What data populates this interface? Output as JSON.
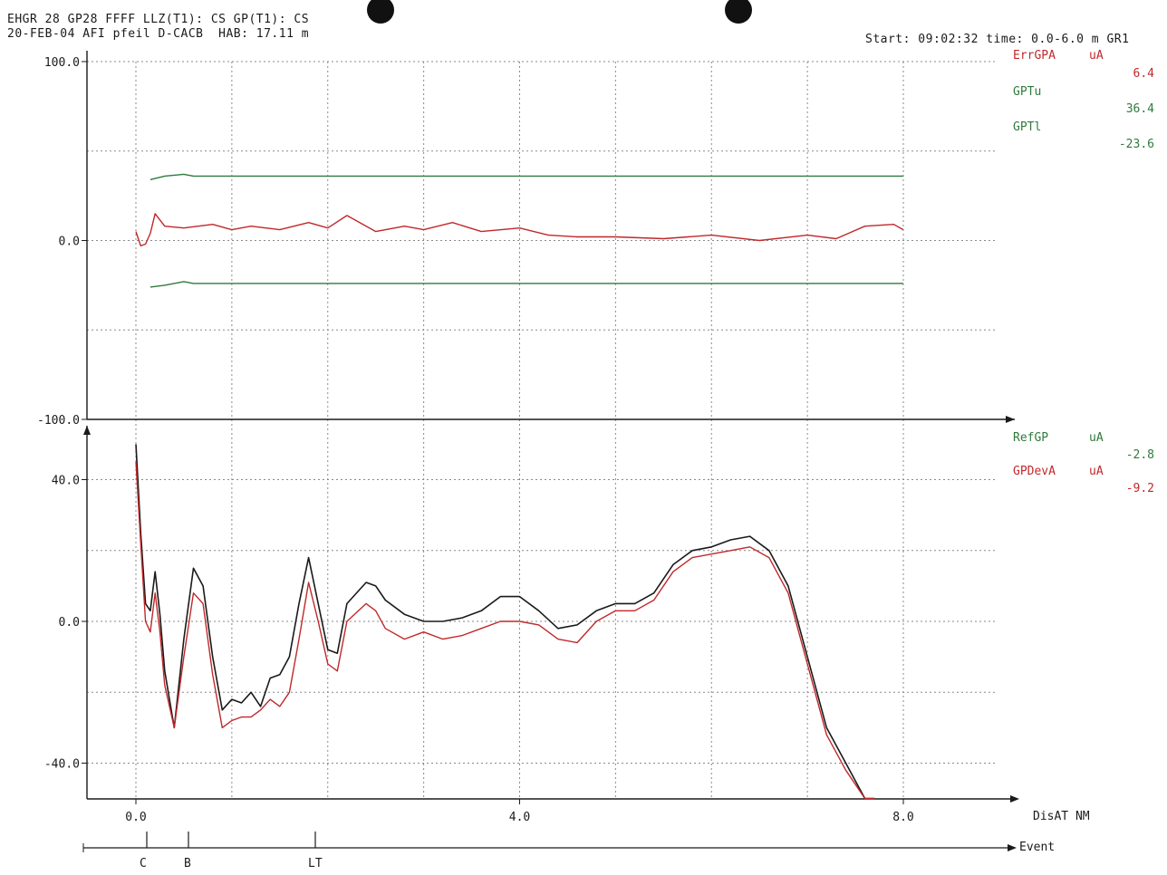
{
  "header": {
    "line1": "EHGR 28 GP28 FFFF LLZ(T1): CS GP(T1): CS",
    "line2": "20-FEB-04 AFI pfeil D-CACB  HAB: 17.11 m",
    "start": "Start: 09:02:32 time: 0.0-6.0 m GR1"
  },
  "colors": {
    "red": "#c0282a",
    "green": "#2f7a3c",
    "black": "#1a1a1a",
    "grid": "#8a8a8a"
  },
  "top_legend": {
    "items": [
      {
        "name": "ErrGPA",
        "unit": "uA",
        "value": "6.4",
        "color": "#c0282a"
      },
      {
        "name": "GPTu",
        "unit": "",
        "value": "36.4",
        "color": "#2f7a3c"
      },
      {
        "name": "GPTl",
        "unit": "",
        "value": "-23.6",
        "color": "#2f7a3c"
      }
    ]
  },
  "bottom_legend": {
    "items": [
      {
        "name": "RefGP",
        "unit": "uA",
        "value": "-2.8",
        "color": "#2f7a3c"
      },
      {
        "name": "GPDevA",
        "unit": "uA",
        "value": "-9.2",
        "color": "#c0282a"
      }
    ]
  },
  "axis_labels": {
    "x_unit": "DisAT NM",
    "event_label": "Event",
    "events": [
      "C",
      "B",
      "LT"
    ]
  },
  "chart_data": [
    {
      "type": "line",
      "title": "",
      "ylim": [
        -100,
        100
      ],
      "yticks": [
        "100.0",
        "0.0",
        "-100.0"
      ],
      "xlim": [
        -0.5,
        9.0
      ],
      "series": [
        {
          "name": "ErrGPA",
          "x": [
            0.0,
            0.05,
            0.1,
            0.15,
            0.2,
            0.3,
            0.5,
            0.8,
            1.0,
            1.2,
            1.5,
            1.8,
            2.0,
            2.2,
            2.5,
            2.8,
            3.0,
            3.3,
            3.6,
            4.0,
            4.3,
            4.6,
            5.0,
            5.5,
            6.0,
            6.5,
            7.0,
            7.3,
            7.6,
            7.9,
            8.0
          ],
          "y": [
            5,
            -3,
            -2,
            4,
            15,
            8,
            7,
            9,
            6,
            8,
            6,
            10,
            7,
            14,
            5,
            8,
            6,
            10,
            5,
            7,
            3,
            2,
            2,
            1,
            3,
            0,
            3,
            1,
            8,
            9,
            6
          ]
        },
        {
          "name": "GPTu",
          "x": [
            0.15,
            0.3,
            0.5,
            0.6,
            8.0
          ],
          "y": [
            34,
            36,
            37,
            36,
            36
          ]
        },
        {
          "name": "GPTl",
          "x": [
            0.15,
            0.3,
            0.5,
            0.6,
            8.0
          ],
          "y": [
            -26,
            -25,
            -23,
            -24,
            -24
          ]
        }
      ]
    },
    {
      "type": "line",
      "title": "",
      "ylim": [
        -50,
        50
      ],
      "yticks": [
        "40.0",
        "0.0",
        "-40.0"
      ],
      "xticks": [
        "0.0",
        "4.0",
        "8.0"
      ],
      "xlim": [
        -0.5,
        9.0
      ],
      "series": [
        {
          "name": "RefGP",
          "x": [
            0.0,
            0.05,
            0.1,
            0.15,
            0.2,
            0.25,
            0.3,
            0.4,
            0.5,
            0.6,
            0.7,
            0.8,
            0.9,
            1.0,
            1.1,
            1.2,
            1.3,
            1.4,
            1.5,
            1.6,
            1.7,
            1.8,
            1.9,
            2.0,
            2.1,
            2.2,
            2.4,
            2.5,
            2.6,
            2.8,
            3.0,
            3.2,
            3.4,
            3.6,
            3.8,
            4.0,
            4.2,
            4.4,
            4.6,
            4.8,
            5.0,
            5.2,
            5.4,
            5.6,
            5.8,
            6.0,
            6.2,
            6.4,
            6.6,
            6.8,
            7.0,
            7.2,
            7.4,
            7.6,
            7.7
          ],
          "y": [
            50,
            25,
            5,
            3,
            14,
            2,
            -14,
            -30,
            -5,
            15,
            10,
            -10,
            -25,
            -22,
            -23,
            -20,
            -24,
            -16,
            -15,
            -10,
            5,
            18,
            5,
            -8,
            -9,
            5,
            11,
            10,
            6,
            2,
            0,
            0,
            1,
            3,
            7,
            7,
            3,
            -2,
            -1,
            3,
            5,
            5,
            8,
            16,
            20,
            21,
            23,
            24,
            20,
            10,
            -10,
            -30,
            -40,
            -52,
            -60
          ]
        },
        {
          "name": "GPDevA",
          "x": [
            0.0,
            0.05,
            0.1,
            0.15,
            0.2,
            0.25,
            0.3,
            0.4,
            0.5,
            0.6,
            0.7,
            0.8,
            0.9,
            1.0,
            1.1,
            1.2,
            1.3,
            1.4,
            1.5,
            1.6,
            1.7,
            1.8,
            1.9,
            2.0,
            2.1,
            2.2,
            2.4,
            2.5,
            2.6,
            2.8,
            3.0,
            3.2,
            3.4,
            3.6,
            3.8,
            4.0,
            4.2,
            4.4,
            4.6,
            4.8,
            5.0,
            5.2,
            5.4,
            5.6,
            5.8,
            6.0,
            6.2,
            6.4,
            6.6,
            6.8,
            7.0,
            7.2,
            7.4,
            7.6,
            7.7
          ],
          "y": [
            45,
            22,
            0,
            -3,
            8,
            -3,
            -18,
            -30,
            -10,
            8,
            5,
            -15,
            -30,
            -28,
            -27,
            -27,
            -25,
            -22,
            -24,
            -20,
            -5,
            11,
            0,
            -12,
            -14,
            0,
            5,
            3,
            -2,
            -5,
            -3,
            -5,
            -4,
            -2,
            0,
            0,
            -1,
            -5,
            -6,
            0,
            3,
            3,
            6,
            14,
            18,
            19,
            20,
            21,
            18,
            8,
            -12,
            -32,
            -42,
            -54,
            -62
          ]
        }
      ]
    }
  ]
}
